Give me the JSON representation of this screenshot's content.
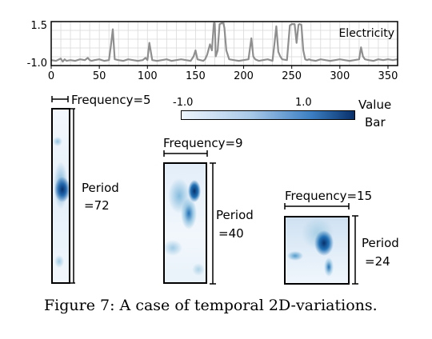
{
  "chart_data": [
    {
      "type": "line",
      "legend": "Electricity",
      "ylim": [
        -1.0,
        1.5
      ],
      "yticks": [
        "1.5",
        "-1.0"
      ],
      "xlim": [
        0,
        360
      ],
      "xticks": [
        "0",
        "50",
        "100",
        "150",
        "200",
        "250",
        "300",
        "350"
      ],
      "grid": true,
      "x": [
        0,
        5,
        10,
        12,
        14,
        16,
        20,
        25,
        30,
        35,
        38,
        40,
        42,
        45,
        50,
        55,
        60,
        62,
        64,
        66,
        70,
        75,
        80,
        85,
        90,
        95,
        98,
        100,
        102,
        105,
        110,
        115,
        120,
        125,
        130,
        135,
        140,
        145,
        148,
        150,
        152,
        155,
        158,
        160,
        162,
        165,
        167,
        169,
        170,
        171,
        173,
        175,
        177,
        179,
        180,
        182,
        185,
        190,
        195,
        200,
        205,
        208,
        210,
        212,
        214,
        216,
        220,
        225,
        230,
        232,
        234,
        236,
        238,
        240,
        245,
        248,
        250,
        251,
        253,
        255,
        257,
        258,
        260,
        262,
        264,
        266,
        268,
        270,
        275,
        280,
        285,
        290,
        295,
        300,
        305,
        310,
        315,
        320,
        322,
        324,
        326,
        330,
        335,
        340,
        345,
        350,
        355,
        360
      ],
      "y": [
        -0.85,
        -0.9,
        -0.75,
        -0.95,
        -0.8,
        -0.9,
        -0.85,
        -0.9,
        -0.8,
        -0.85,
        -0.7,
        -0.85,
        -0.9,
        -0.85,
        -0.8,
        -0.9,
        -0.85,
        0.1,
        1.2,
        -0.8,
        -0.85,
        -0.9,
        -0.8,
        -0.85,
        -0.9,
        -0.85,
        -0.7,
        -0.85,
        0.3,
        -0.85,
        -0.9,
        -0.85,
        -0.8,
        -0.9,
        -0.85,
        -0.8,
        -0.85,
        -0.9,
        -0.6,
        -0.2,
        -0.8,
        -0.85,
        -0.9,
        -0.8,
        -0.5,
        0.2,
        -0.2,
        1.6,
        1.6,
        -0.6,
        -0.2,
        1.55,
        1.6,
        1.6,
        1.3,
        -0.2,
        -0.8,
        -0.85,
        -0.9,
        -0.85,
        -0.8,
        0.6,
        -0.6,
        -0.8,
        -0.85,
        -0.9,
        -0.85,
        -0.8,
        -0.9,
        0.2,
        1.4,
        -0.3,
        -0.6,
        -0.8,
        -0.85,
        1.45,
        1.55,
        1.55,
        1.55,
        0.3,
        1.5,
        1.55,
        1.5,
        -0.2,
        -0.8,
        -0.85,
        -0.8,
        -0.85,
        -0.9,
        -0.8,
        -0.85,
        -0.9,
        -0.85,
        -0.8,
        -0.85,
        -0.9,
        -0.85,
        -0.8,
        0.0,
        -0.6,
        -0.8,
        -0.85,
        -0.9,
        -0.8,
        -0.85,
        -0.8,
        -0.85,
        -0.8
      ]
    },
    {
      "type": "heatmap",
      "colorbar": {
        "min": -1.0,
        "max": 1.0,
        "min_label": "-1.0",
        "max_label": "1.0",
        "title": "Value Bar"
      },
      "panels": [
        {
          "frequency_label": "Frequency=5",
          "period_label": "Period =72",
          "frequency": 5,
          "period": 72
        },
        {
          "frequency_label": "Frequency=9",
          "period_label": "Period =40",
          "frequency": 9,
          "period": 40
        },
        {
          "frequency_label": "Frequency=15",
          "period_label": "Period =24",
          "frequency": 15,
          "period": 24
        }
      ]
    }
  ],
  "labels": {
    "legend": "Electricity",
    "value_bar_line1": "Value",
    "value_bar_line2": "Bar",
    "freq5": "Frequency=5",
    "freq9": "Frequency=9",
    "freq15": "Frequency=15",
    "period_word": "Period",
    "period72": "=72",
    "period40": "=40",
    "period24": "=24",
    "cb_min": "-1.0",
    "cb_max": "1.0",
    "caption": "Figure 7: A case of temporal 2D-variations."
  },
  "colors": {
    "line": "#8f8f8f",
    "grid": "#d9d9d9",
    "heat_low": "#eef5fc",
    "heat_high": "#08306b"
  }
}
